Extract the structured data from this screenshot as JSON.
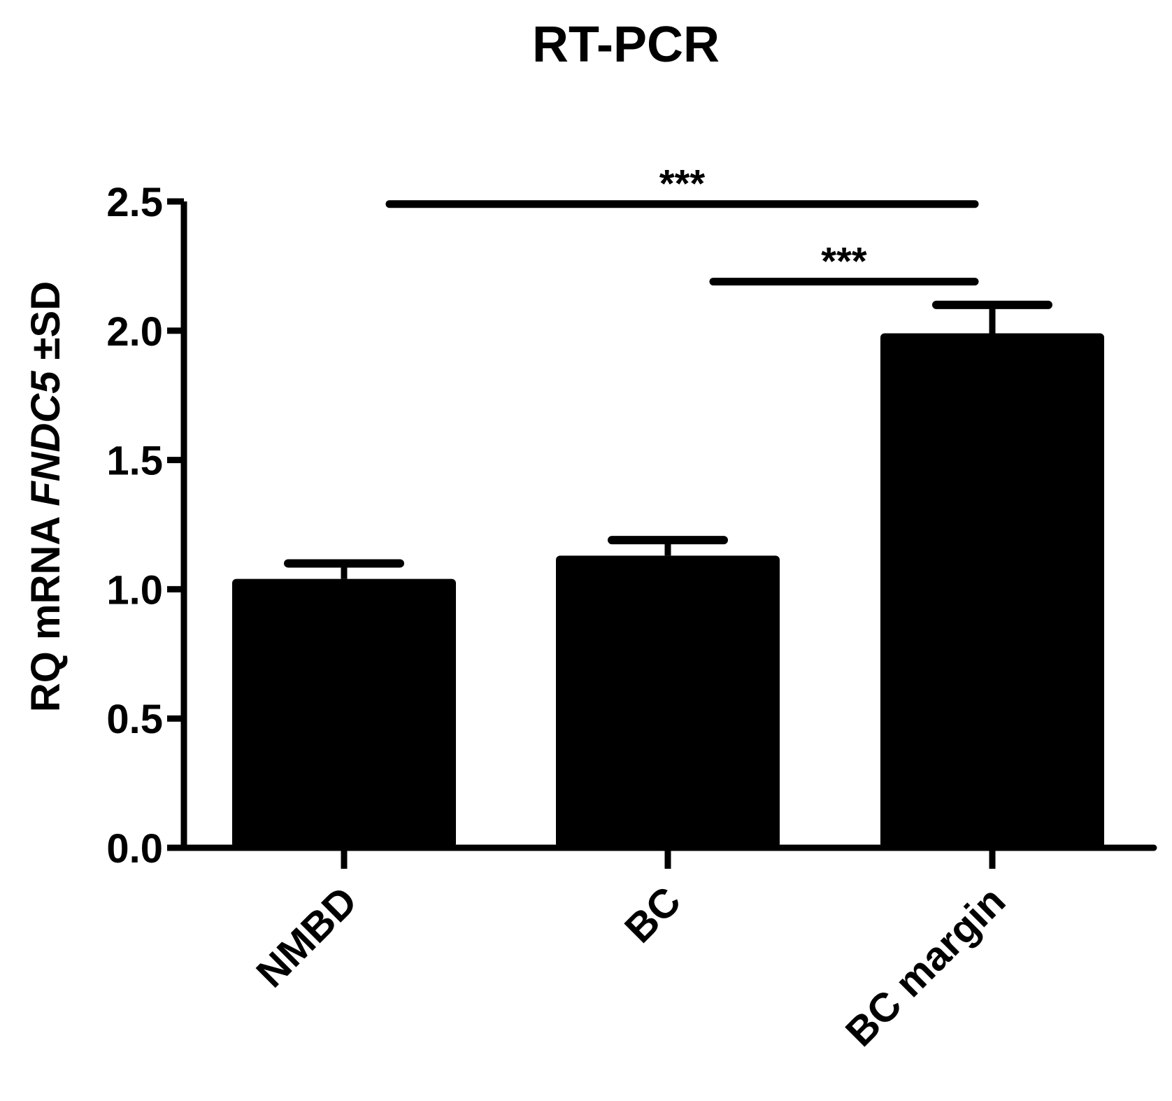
{
  "chart_data": {
    "type": "bar",
    "title": "RT-PCR",
    "ylabel": {
      "prefix": "RQ mRNA ",
      "gene": "FNDC5",
      "suffix": " ±SD"
    },
    "xlabel": "",
    "categories": [
      "NMBD",
      "BC",
      "BC margin"
    ],
    "values": [
      1.04,
      1.13,
      1.99
    ],
    "errors": [
      0.06,
      0.06,
      0.11
    ],
    "ylim": [
      0,
      2.5
    ],
    "yticks": [
      0.0,
      0.5,
      1.0,
      1.5,
      2.0,
      2.5
    ],
    "ytick_labels": [
      "0.0",
      "0.5",
      "1.0",
      "1.5",
      "2.0",
      "2.5"
    ],
    "grid": false,
    "bar_color": "#000000",
    "significance": [
      {
        "from": "NMBD",
        "to": "BC margin",
        "level": 2.49,
        "label": "***"
      },
      {
        "from": "BC",
        "to": "BC margin",
        "level": 2.19,
        "label": "***"
      }
    ]
  }
}
